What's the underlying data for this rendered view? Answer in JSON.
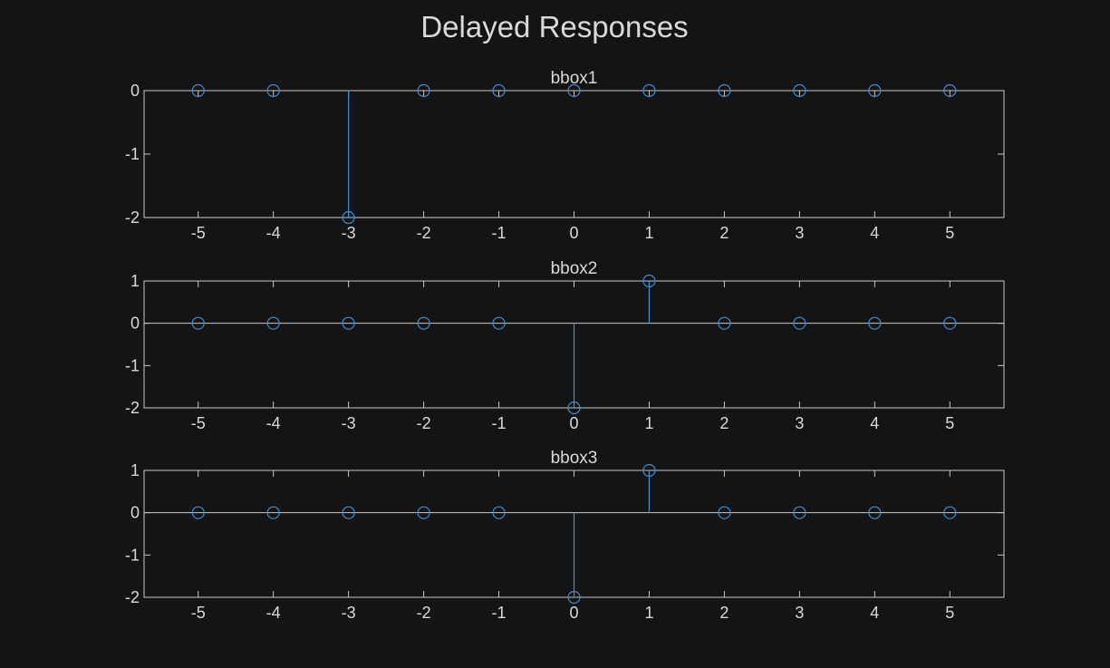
{
  "figure": {
    "title": "Delayed Responses",
    "colors": {
      "background": "#141414",
      "axes": "#c8c8c8",
      "text": "#d9d9d9",
      "series": "#3b8fd6"
    }
  },
  "chart_data": [
    {
      "type": "stem",
      "title": "bbox1",
      "xlabel": "",
      "ylabel": "",
      "x": [
        -5,
        -4,
        -3,
        -2,
        -1,
        0,
        1,
        2,
        3,
        4,
        5
      ],
      "y": [
        0,
        0,
        -2,
        0,
        0,
        0,
        0,
        0,
        0,
        0,
        0
      ],
      "xlim": [
        -5.72,
        5.72
      ],
      "ylim": [
        -2,
        0
      ],
      "xticks": [
        -5,
        -4,
        -3,
        -2,
        -1,
        0,
        1,
        2,
        3,
        4,
        5
      ],
      "yticks": [
        0,
        -1,
        -2
      ],
      "grid": false
    },
    {
      "type": "stem",
      "title": "bbox2",
      "xlabel": "",
      "ylabel": "",
      "x": [
        -5,
        -4,
        -3,
        -2,
        -1,
        0,
        1,
        2,
        3,
        4,
        5
      ],
      "y": [
        0,
        0,
        0,
        0,
        0,
        -2,
        1,
        0,
        0,
        0,
        0
      ],
      "xlim": [
        -5.72,
        5.72
      ],
      "ylim": [
        -2,
        1
      ],
      "xticks": [
        -5,
        -4,
        -3,
        -2,
        -1,
        0,
        1,
        2,
        3,
        4,
        5
      ],
      "yticks": [
        1,
        0,
        -1,
        -2
      ],
      "grid": false
    },
    {
      "type": "stem",
      "title": "bbox3",
      "xlabel": "",
      "ylabel": "",
      "x": [
        -5,
        -4,
        -3,
        -2,
        -1,
        0,
        1,
        2,
        3,
        4,
        5
      ],
      "y": [
        0,
        0,
        0,
        0,
        0,
        -2,
        1,
        0,
        0,
        0,
        0
      ],
      "xlim": [
        -5.72,
        5.72
      ],
      "ylim": [
        -2,
        1
      ],
      "xticks": [
        -5,
        -4,
        -3,
        -2,
        -1,
        0,
        1,
        2,
        3,
        4,
        5
      ],
      "yticks": [
        1,
        0,
        -1,
        -2
      ],
      "grid": false
    }
  ]
}
